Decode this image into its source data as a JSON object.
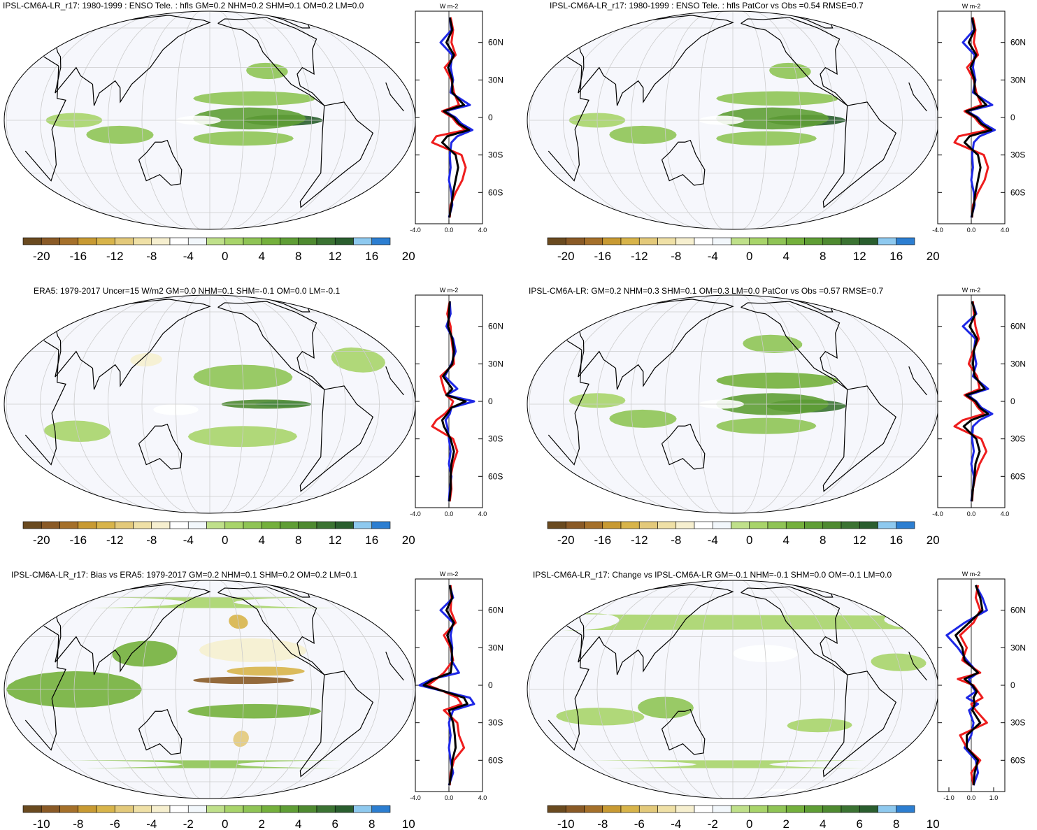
{
  "figure": {
    "main_title": "",
    "colors": {
      "ocean": "#f6f7fc",
      "land_outline": "#000000",
      "graticule": "#cccccc",
      "obs_line": "#1e28e6",
      "model_line": "#ee1d1d",
      "mean_line": "#000000"
    },
    "palette": [
      "#6a4a1f",
      "#8a5a26",
      "#a5702a",
      "#c89a32",
      "#d8b44a",
      "#e3c97a",
      "#efe0a6",
      "#f6efcf",
      "#ffffff",
      "#f2f7fb",
      "#bfe08a",
      "#a8d46a",
      "#8fc455",
      "#74b03c",
      "#5f9e35",
      "#4e8a30",
      "#3b7332",
      "#2a5e2e",
      "#8ec9ef",
      "#2c7ed1"
    ]
  },
  "chart_data": [
    {
      "type": "heatmap",
      "panel": "top-left",
      "title": "IPSL-CM6A-LR_r17: 1980-1999 : ENSO Tele. : hfls GM=0.2 NHM=0.2 SHM=0.1 OM=0.2 LM=0.0",
      "colorbar_ticks": [
        "-20",
        "-16",
        "-12",
        "-8",
        "-4",
        "0",
        "4",
        "8",
        "12",
        "16",
        "20"
      ],
      "colorbar_range": [
        -22,
        22
      ],
      "blobs": [
        {
          "lon": -115,
          "lat": 0,
          "w": 70,
          "h": 6,
          "v": 16
        },
        {
          "lon": -145,
          "lat": 1,
          "w": 100,
          "h": 12,
          "v": 9
        },
        {
          "lon": -140,
          "lat": 12,
          "w": 110,
          "h": 8,
          "v": 6
        },
        {
          "lon": -150,
          "lat": -10,
          "w": 90,
          "h": 8,
          "v": 5
        },
        {
          "lon": 100,
          "lat": -8,
          "w": 60,
          "h": 10,
          "v": 6
        },
        {
          "lon": 60,
          "lat": 0,
          "w": 50,
          "h": 8,
          "v": 4
        },
        {
          "lon": -125,
          "lat": 28,
          "w": 40,
          "h": 10,
          "v": 5
        },
        {
          "lon": 170,
          "lat": 0,
          "w": 40,
          "h": 5,
          "v": -3
        }
      ],
      "profile": {
        "unit": "W m-2",
        "xlim": [
          -4,
          4
        ],
        "x_ticks": [
          "-4.0",
          "0.0",
          "4.0"
        ],
        "lat_ticks": [
          60,
          30,
          0,
          -30,
          -60
        ],
        "lat_labels": [
          "60N",
          "30N",
          "0",
          "30S",
          "60S"
        ],
        "lat": [
          80,
          70,
          60,
          50,
          40,
          30,
          20,
          10,
          5,
          0,
          -5,
          -10,
          -15,
          -20,
          -30,
          -40,
          -50,
          -60,
          -70,
          -80
        ],
        "obs": [
          0.1,
          0.3,
          -1.0,
          0.4,
          0.2,
          0.5,
          0.2,
          2.5,
          -0.5,
          0.8,
          1.5,
          2.8,
          1.0,
          0.3,
          0.1,
          0.2,
          0.0,
          0.3,
          0.4,
          0.0
        ],
        "model": [
          0.2,
          0.5,
          0.3,
          0.8,
          -0.5,
          0.3,
          0.6,
          1.2,
          -0.8,
          0.4,
          1.0,
          2.0,
          -1.5,
          -2.0,
          1.5,
          2.0,
          1.6,
          0.8,
          0.2,
          0.1
        ],
        "mean": [
          0.1,
          0.4,
          -0.3,
          0.6,
          -0.1,
          0.4,
          0.4,
          1.8,
          -0.6,
          0.6,
          1.2,
          2.4,
          -0.2,
          -0.8,
          0.8,
          1.1,
          0.8,
          0.5,
          0.3,
          0.05
        ]
      }
    },
    {
      "type": "heatmap",
      "panel": "top-right",
      "title": "IPSL-CM6A-LR_r17: 1980-1999 : ENSO Tele. : hfls PatCor vs Obs =0.54 RMSE=0.7",
      "colorbar_ticks": [
        "-20",
        "-16",
        "-12",
        "-8",
        "-4",
        "0",
        "4",
        "8",
        "12",
        "16",
        "20"
      ],
      "colorbar_range": [
        -22,
        22
      ],
      "blobs": [
        {
          "lon": -115,
          "lat": 0,
          "w": 70,
          "h": 6,
          "v": 16
        },
        {
          "lon": -145,
          "lat": 1,
          "w": 100,
          "h": 12,
          "v": 9
        },
        {
          "lon": -140,
          "lat": 12,
          "w": 110,
          "h": 8,
          "v": 6
        },
        {
          "lon": -150,
          "lat": -10,
          "w": 90,
          "h": 8,
          "v": 5
        },
        {
          "lon": 100,
          "lat": -8,
          "w": 60,
          "h": 10,
          "v": 6
        },
        {
          "lon": 60,
          "lat": 0,
          "w": 50,
          "h": 8,
          "v": 4
        },
        {
          "lon": -125,
          "lat": 28,
          "w": 40,
          "h": 10,
          "v": 5
        },
        {
          "lon": 170,
          "lat": 0,
          "w": 40,
          "h": 5,
          "v": -3
        }
      ],
      "profile": {
        "unit": "W m-2",
        "xlim": [
          -4,
          4
        ],
        "x_ticks": [
          "-4.0",
          "0.0",
          "4.0"
        ],
        "lat_ticks": [
          60,
          30,
          0,
          -30,
          -60
        ],
        "lat_labels": [
          "60N",
          "30N",
          "0",
          "30S",
          "60S"
        ],
        "lat": [
          80,
          70,
          60,
          50,
          40,
          30,
          20,
          10,
          5,
          0,
          -5,
          -10,
          -15,
          -20,
          -30,
          -40,
          -50,
          -60,
          -70,
          -80
        ],
        "obs": [
          0.1,
          0.3,
          -1.0,
          0.4,
          0.2,
          0.5,
          0.2,
          2.5,
          -0.5,
          0.8,
          1.5,
          2.8,
          1.0,
          0.3,
          0.1,
          0.2,
          0.0,
          0.3,
          0.4,
          0.0
        ],
        "model": [
          0.2,
          0.5,
          0.3,
          0.8,
          -0.5,
          0.3,
          0.6,
          1.2,
          -0.8,
          0.4,
          1.0,
          2.0,
          -1.5,
          -2.0,
          1.5,
          2.0,
          1.6,
          0.8,
          0.2,
          0.1
        ],
        "mean": [
          0.1,
          0.4,
          -0.3,
          0.6,
          -0.1,
          0.4,
          0.4,
          1.8,
          -0.6,
          0.6,
          1.2,
          2.4,
          -0.2,
          -0.8,
          0.8,
          1.1,
          0.8,
          0.5,
          0.3,
          0.05
        ]
      }
    },
    {
      "type": "heatmap",
      "panel": "middle-left",
      "title": "ERA5: 1979-2017 Uncer=15 W/m2 GM=0.0 NHM=0.1 SHM=-0.1 OM=0.0 LM=-0.1",
      "colorbar_ticks": [
        "-20",
        "-16",
        "-12",
        "-8",
        "-4",
        "0",
        "4",
        "8",
        "12",
        "16",
        "20"
      ],
      "colorbar_range": [
        -22,
        22
      ],
      "blobs": [
        {
          "lon": -115,
          "lat": 0,
          "w": 50,
          "h": 3,
          "v": 21
        },
        {
          "lon": -130,
          "lat": 0,
          "w": 80,
          "h": 5,
          "v": 13
        },
        {
          "lon": -150,
          "lat": 15,
          "w": 90,
          "h": 14,
          "v": 6
        },
        {
          "lon": -150,
          "lat": -18,
          "w": 100,
          "h": 12,
          "v": 4
        },
        {
          "lon": 150,
          "lat": -3,
          "w": 40,
          "h": 6,
          "v": -3
        },
        {
          "lon": 120,
          "lat": 25,
          "w": 30,
          "h": 8,
          "v": -6
        },
        {
          "lon": 60,
          "lat": -15,
          "w": 60,
          "h": 12,
          "v": 3
        },
        {
          "lon": -40,
          "lat": 25,
          "w": 50,
          "h": 15,
          "v": 3
        }
      ],
      "profile": {
        "unit": "W m-2",
        "xlim": [
          -4,
          4
        ],
        "x_ticks": [
          "-4.0",
          "0.0",
          "4.0"
        ],
        "lat_ticks": [
          60,
          30,
          0,
          -30,
          -60
        ],
        "lat_labels": [
          "60N",
          "30N",
          "0",
          "30S",
          "60S"
        ],
        "lat": [
          80,
          70,
          60,
          50,
          40,
          30,
          20,
          10,
          5,
          0,
          -5,
          -10,
          -15,
          -20,
          -30,
          -40,
          -50,
          -60,
          -70,
          -80
        ],
        "obs": [
          0.1,
          0.2,
          -0.3,
          0.5,
          0.8,
          0.3,
          -0.5,
          1.0,
          -0.3,
          3.0,
          0.3,
          0.1,
          -0.4,
          -0.2,
          0.0,
          0.2,
          0.0,
          0.3,
          0.1,
          0.0
        ],
        "model": [
          0.1,
          -0.2,
          0.2,
          0.3,
          0.5,
          0.6,
          -1.0,
          -0.6,
          -0.3,
          0.5,
          0.2,
          -0.5,
          -1.5,
          -2.0,
          0.5,
          1.0,
          0.5,
          0.2,
          0.3,
          0.1
        ],
        "mean": [
          0.1,
          0.0,
          -0.1,
          0.4,
          0.6,
          0.4,
          -0.7,
          0.4,
          -0.3,
          2.0,
          0.3,
          -0.2,
          -0.8,
          -0.6,
          0.2,
          0.6,
          0.3,
          0.2,
          0.2,
          0.05
        ]
      }
    },
    {
      "type": "heatmap",
      "panel": "middle-right",
      "title": "IPSL-CM6A-LR: GM=0.2 NHM=0.3 SHM=0.1 OM=0.3 LM=0.0 PatCor vs Obs =0.57 RMSE=0.7",
      "colorbar_ticks": [
        "-20",
        "-16",
        "-12",
        "-8",
        "-4",
        "0",
        "4",
        "8",
        "12",
        "16",
        "20"
      ],
      "colorbar_range": [
        -22,
        22
      ],
      "blobs": [
        {
          "lon": -115,
          "lat": -1,
          "w": 70,
          "h": 7,
          "v": 15
        },
        {
          "lon": -145,
          "lat": 0,
          "w": 100,
          "h": 12,
          "v": 9
        },
        {
          "lon": -140,
          "lat": 13,
          "w": 110,
          "h": 9,
          "v": 7
        },
        {
          "lon": -150,
          "lat": -12,
          "w": 90,
          "h": 9,
          "v": 6
        },
        {
          "lon": 100,
          "lat": -8,
          "w": 60,
          "h": 10,
          "v": 6
        },
        {
          "lon": 60,
          "lat": 2,
          "w": 50,
          "h": 8,
          "v": 4
        },
        {
          "lon": -140,
          "lat": 35,
          "w": 60,
          "h": 12,
          "v": 5
        },
        {
          "lon": 170,
          "lat": 0,
          "w": 40,
          "h": 5,
          "v": -3
        }
      ],
      "profile": {
        "unit": "W m-2",
        "xlim": [
          -4,
          4
        ],
        "x_ticks": [
          "-4.0",
          "0.0",
          "4.0"
        ],
        "lat_ticks": [
          60,
          30,
          0,
          -30,
          -60
        ],
        "lat_labels": [
          "60N",
          "30N",
          "0",
          "30S",
          "60S"
        ],
        "lat": [
          80,
          70,
          60,
          50,
          40,
          30,
          20,
          10,
          5,
          0,
          -5,
          -10,
          -15,
          -20,
          -30,
          -40,
          -50,
          -60,
          -70,
          -80
        ],
        "obs": [
          0.1,
          0.6,
          -1.0,
          0.5,
          0.3,
          0.6,
          0.2,
          2.0,
          -0.4,
          0.6,
          1.2,
          2.5,
          1.0,
          0.2,
          0.1,
          0.3,
          0.0,
          0.3,
          0.2,
          0.0
        ],
        "model": [
          0.2,
          0.3,
          0.5,
          0.9,
          0.2,
          -0.3,
          0.7,
          1.0,
          -0.8,
          0.3,
          0.8,
          1.5,
          -1.0,
          -2.0,
          1.2,
          1.8,
          1.0,
          0.5,
          0.2,
          0.1
        ],
        "mean": [
          0.1,
          0.5,
          -0.2,
          0.7,
          0.3,
          0.2,
          0.4,
          1.6,
          -0.6,
          0.5,
          1.0,
          2.0,
          0.0,
          -0.9,
          0.6,
          1.0,
          0.5,
          0.4,
          0.2,
          0.05
        ]
      }
    },
    {
      "type": "heatmap",
      "panel": "bottom-left",
      "title": "IPSL-CM6A-LR_r17: Bias vs ERA5: 1979-2017 GM=0.2 NHM=0.1 SHM=0.2 OM=0.2 LM=0.1",
      "colorbar_ticks": [
        "-10",
        "-8",
        "-6",
        "-4",
        "-2",
        "0",
        "2",
        "4",
        "6",
        "8",
        "10"
      ],
      "colorbar_range": [
        -11,
        11
      ],
      "blobs": [
        {
          "lon": -150,
          "lat": 5,
          "w": 90,
          "h": 4,
          "v": -9
        },
        {
          "lon": -130,
          "lat": 10,
          "w": 70,
          "h": 5,
          "v": -6
        },
        {
          "lon": -150,
          "lat": 40,
          "w": 20,
          "h": 10,
          "v": -6
        },
        {
          "lon": -150,
          "lat": -28,
          "w": 15,
          "h": 10,
          "v": -5
        },
        {
          "lon": -140,
          "lat": 22,
          "w": 100,
          "h": 14,
          "v": -3
        },
        {
          "lon": 60,
          "lat": 0,
          "w": 120,
          "h": 20,
          "v": 4
        },
        {
          "lon": 120,
          "lat": 20,
          "w": 60,
          "h": 15,
          "v": 4
        },
        {
          "lon": -140,
          "lat": -12,
          "w": 120,
          "h": 8,
          "v": 4
        },
        {
          "lon": 0,
          "lat": -45,
          "w": 300,
          "h": 6,
          "v": 3
        },
        {
          "lon": 0,
          "lat": 55,
          "w": 300,
          "h": 10,
          "v": 2
        }
      ],
      "profile": {
        "unit": "W m-2",
        "xlim": [
          -4,
          4
        ],
        "x_ticks": [
          "-4.0",
          "0.0",
          "4.0"
        ],
        "lat_ticks": [
          60,
          30,
          0,
          -30,
          -60
        ],
        "lat_labels": [
          "60N",
          "30N",
          "0",
          "30S",
          "60S"
        ],
        "lat": [
          80,
          70,
          60,
          50,
          40,
          30,
          20,
          10,
          5,
          0,
          -5,
          -10,
          -15,
          -20,
          -30,
          -40,
          -50,
          -60,
          -70,
          -80
        ],
        "obs": [
          0.1,
          0.5,
          -1.0,
          0.5,
          0.2,
          0.4,
          0.3,
          1.2,
          -2.0,
          -3.5,
          -0.5,
          2.5,
          3.0,
          0.5,
          0.0,
          0.2,
          0.0,
          0.2,
          0.5,
          0.0
        ],
        "model": [
          0.2,
          0.3,
          0.2,
          0.8,
          -0.6,
          0.2,
          0.5,
          -0.6,
          -1.5,
          -2.5,
          -0.6,
          1.0,
          1.5,
          -0.6,
          1.0,
          1.2,
          1.8,
          0.6,
          0.2,
          0.1
        ],
        "mean": [
          0.1,
          0.4,
          -0.3,
          0.6,
          -0.2,
          0.3,
          0.4,
          0.2,
          -1.8,
          -3.0,
          -0.5,
          1.8,
          2.2,
          0.0,
          0.5,
          0.7,
          0.8,
          0.4,
          0.3,
          0.05
        ]
      }
    },
    {
      "type": "heatmap",
      "panel": "bottom-right",
      "title": "IPSL-CM6A-LR_r17: Change vs IPSL-CM6A-LR GM=-0.1 NHM=-0.1 SHM=0.0 OM=-0.1 LM=0.0",
      "colorbar_ticks": [
        "-10",
        "-8",
        "-6",
        "-4",
        "-2",
        "0",
        "2",
        "4",
        "6",
        "8",
        "10"
      ],
      "colorbar_range": [
        -11,
        11
      ],
      "blobs": [
        {
          "lon": -150,
          "lat": 20,
          "w": 60,
          "h": 10,
          "v": -1.5
        },
        {
          "lon": 120,
          "lat": -10,
          "w": 50,
          "h": 12,
          "v": 2.5
        },
        {
          "lon": 60,
          "lat": -15,
          "w": 80,
          "h": 10,
          "v": 2
        },
        {
          "lon": -100,
          "lat": -20,
          "w": 60,
          "h": 8,
          "v": 2
        },
        {
          "lon": 20,
          "lat": 40,
          "w": 80,
          "h": 12,
          "v": 1.8
        },
        {
          "lon": -30,
          "lat": 15,
          "w": 50,
          "h": 10,
          "v": 1.5
        },
        {
          "lon": 0,
          "lat": -45,
          "w": 280,
          "h": 6,
          "v": 1.5
        },
        {
          "lon": -90,
          "lat": -70,
          "w": 80,
          "h": 4,
          "v": -2
        }
      ],
      "profile": {
        "unit": "W m-2",
        "xlim": [
          -1.5,
          1.5
        ],
        "x_ticks": [
          "-1.0",
          "0.0",
          "1.0"
        ],
        "lat_ticks": [
          60,
          30,
          0,
          -30,
          -60
        ],
        "lat_labels": [
          "60N",
          "30N",
          "0",
          "30S",
          "60S"
        ],
        "lat": [
          80,
          70,
          60,
          50,
          40,
          30,
          20,
          10,
          5,
          0,
          -5,
          -10,
          -15,
          -20,
          -30,
          -40,
          -50,
          -60,
          -70,
          -80
        ],
        "obs": [
          0.2,
          0.5,
          0.7,
          -0.3,
          -1.1,
          -0.6,
          -0.2,
          0.3,
          -0.1,
          0.0,
          0.2,
          -0.2,
          0.3,
          -0.1,
          0.1,
          0.0,
          -0.3,
          0.2,
          0.3,
          0.1
        ],
        "model": [
          0.3,
          0.2,
          0.4,
          0.1,
          -0.5,
          -0.2,
          -0.4,
          0.4,
          -0.6,
          0.1,
          0.3,
          0.5,
          0.0,
          0.2,
          0.7,
          -0.5,
          -0.2,
          0.4,
          0.0,
          0.1
        ],
        "mean": [
          0.2,
          0.4,
          0.5,
          -0.1,
          -0.7,
          -0.4,
          -0.3,
          0.3,
          -0.3,
          0.05,
          0.25,
          0.1,
          0.15,
          0.05,
          0.4,
          -0.2,
          -0.2,
          0.3,
          0.15,
          0.1
        ]
      }
    }
  ]
}
